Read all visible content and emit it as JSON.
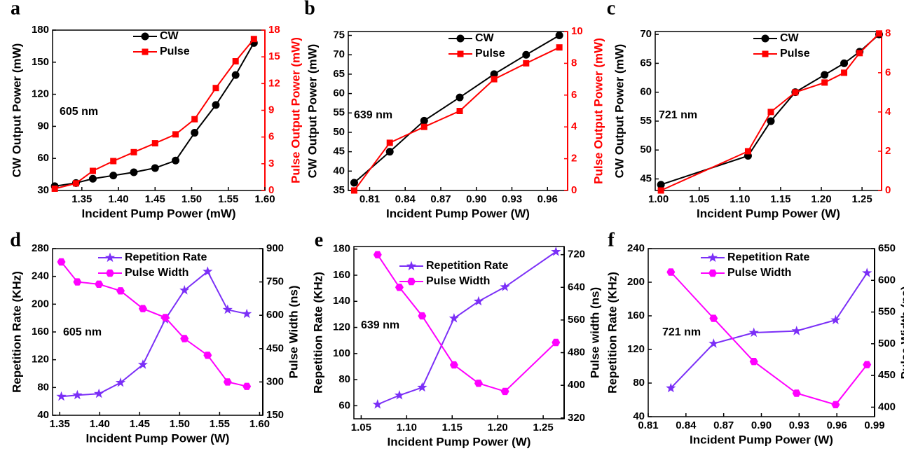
{
  "chart_data": [
    {
      "type": "line",
      "panel_label": "a",
      "annotation": "605 nm",
      "xlabel": "Incident Pump Power (mW)",
      "ylabel": "CW Output Power (mW)",
      "y2label": "Pulse Output Power (mW)",
      "y2color": "#ff0000",
      "x": [
        1.313,
        1.342,
        1.365,
        1.393,
        1.421,
        1.45,
        1.478,
        1.504,
        1.533,
        1.56,
        1.585
      ],
      "xlim": [
        1.31,
        1.6
      ],
      "xticks": [
        1.35,
        {
          "value": 1.4,
          "label": "1.40"
        },
        1.45,
        {
          "value": 1.5,
          "label": "1.50"
        },
        1.55,
        {
          "value": 1.6,
          "label": "1.60"
        }
      ],
      "ylim": [
        30,
        180
      ],
      "yticks": [
        30,
        60,
        90,
        120,
        150,
        180
      ],
      "y2lim": [
        0,
        18
      ],
      "y2ticks": [
        0,
        3,
        6,
        9,
        12,
        15,
        18
      ],
      "series": [
        {
          "name": "CW",
          "color": "#000000",
          "marker": "circle",
          "values": [
            34,
            37,
            41,
            44,
            47,
            51,
            58,
            84,
            110,
            138,
            168
          ]
        },
        {
          "name": "Pulse",
          "color": "#ff0000",
          "marker": "square",
          "axis": "y2",
          "values": [
            0.2,
            0.8,
            2.2,
            3.3,
            4.3,
            5.3,
            6.3,
            8,
            11.5,
            14.5,
            17
          ]
        }
      ]
    },
    {
      "type": "line",
      "panel_label": "b",
      "annotation": "639 nm",
      "xlabel": "Incident Pump Power (W)",
      "ylabel": "CW Output Power (mW)",
      "y2label": "Pulse Output Power (mW)",
      "y2color": "#ff0000",
      "x": [
        0.797,
        0.827,
        0.856,
        0.886,
        0.915,
        0.942,
        0.97
      ],
      "xlim": [
        0.792,
        0.977
      ],
      "xticks": [
        0.81,
        0.84,
        0.87,
        {
          "value": 0.9,
          "label": "0.90"
        },
        0.93,
        0.96
      ],
      "ylim": [
        35,
        76
      ],
      "yticks": [
        35,
        40,
        45,
        50,
        55,
        60,
        65,
        70,
        75
      ],
      "y2lim": [
        0,
        10
      ],
      "y2ticks": [
        0,
        2,
        4,
        6,
        8,
        10
      ],
      "series": [
        {
          "name": "CW",
          "color": "#000000",
          "marker": "circle",
          "values": [
            37,
            45,
            53,
            59,
            65,
            70,
            75
          ]
        },
        {
          "name": "Pulse",
          "color": "#ff0000",
          "marker": "square",
          "axis": "y2",
          "values": [
            0,
            3,
            4,
            5,
            7,
            8,
            9
          ]
        }
      ]
    },
    {
      "type": "line",
      "panel_label": "c",
      "annotation": "721 nm",
      "xlabel": "Incident Pump Power (W)",
      "ylabel": "CW Output Power (mW)",
      "y2label": "Pulse Output Power (mW)",
      "y2color": "#ff0000",
      "x": [
        1.003,
        1.11,
        1.138,
        1.168,
        1.204,
        1.228,
        1.247,
        1.271
      ],
      "xlim": [
        0.996,
        1.274
      ],
      "xticks": [
        {
          "value": 1.0,
          "label": "1.00"
        },
        1.05,
        {
          "value": 1.1,
          "label": "1.10"
        },
        1.15,
        {
          "value": 1.2,
          "label": "1.20"
        },
        1.25
      ],
      "ylim": [
        43,
        70.5
      ],
      "yticks": [
        45,
        50,
        55,
        60,
        65,
        70
      ],
      "y2lim": [
        0,
        8.1
      ],
      "y2ticks": [
        0,
        2,
        4,
        6,
        8
      ],
      "series": [
        {
          "name": "CW",
          "color": "#000000",
          "marker": "circle",
          "values": [
            44,
            49,
            55,
            60,
            63,
            65,
            67,
            70
          ]
        },
        {
          "name": "Pulse",
          "color": "#ff0000",
          "marker": "square",
          "axis": "y2",
          "values": [
            0,
            2,
            4,
            5,
            5.5,
            6,
            7,
            8
          ]
        }
      ]
    },
    {
      "type": "line",
      "panel_label": "d",
      "annotation": "605 nm",
      "xlabel": "Incident Pump Power (W)",
      "ylabel": "Repetition Rate (KHz)",
      "y2label": "Pulse Width (ns)",
      "y2color": "#000000",
      "x": [
        1.352,
        1.372,
        1.399,
        1.426,
        1.454,
        1.482,
        1.506,
        1.535,
        1.56,
        1.584
      ],
      "xlim": [
        1.341,
        1.604
      ],
      "xticks": [
        1.35,
        {
          "value": 1.4,
          "label": "1.40"
        },
        1.45,
        {
          "value": 1.5,
          "label": "1.50"
        },
        1.55,
        {
          "value": 1.6,
          "label": "1.60"
        }
      ],
      "ylim": [
        40,
        280
      ],
      "yticks": [
        40,
        80,
        120,
        160,
        200,
        240,
        280
      ],
      "y2lim": [
        150,
        900
      ],
      "y2ticks": [
        150,
        300,
        450,
        600,
        750,
        900
      ],
      "series": [
        {
          "name": "Repetition Rate",
          "color": "#7b2ff7",
          "marker": "star",
          "values": [
            67,
            69,
            71,
            87,
            113,
            178,
            220,
            247,
            192,
            186
          ]
        },
        {
          "name": "Pulse Width",
          "color": "#ff00ff",
          "marker": "hexagon",
          "axis": "y2",
          "values": [
            840,
            750,
            740,
            710,
            630,
            590,
            495,
            420,
            300,
            280
          ]
        }
      ]
    },
    {
      "type": "line",
      "panel_label": "e",
      "annotation": "639 nm",
      "xlabel": "Incident Pump Power (W)",
      "ylabel": "Repetition Rate (KHz)",
      "y2label": "Pulse width (ns)",
      "y2color": "#000000",
      "x": [
        1.068,
        1.092,
        1.117,
        1.152,
        1.179,
        1.208,
        1.264
      ],
      "xlim": [
        1.042,
        1.273
      ],
      "xticks": [
        1.05,
        {
          "value": 1.1,
          "label": "1.10"
        },
        1.15,
        {
          "value": 1.2,
          "label": "1.20"
        },
        1.25
      ],
      "ylim": [
        50,
        182
      ],
      "yticks": [
        60,
        80,
        100,
        120,
        140,
        160,
        180
      ],
      "y2lim": [
        318,
        740
      ],
      "y2ticks": [
        320,
        400,
        480,
        560,
        640,
        720
      ],
      "series": [
        {
          "name": "Repetition Rate",
          "color": "#7b2ff7",
          "marker": "star",
          "values": [
            61,
            68,
            74,
            127,
            140,
            151,
            178
          ]
        },
        {
          "name": "Pulse Width",
          "color": "#ff00ff",
          "marker": "hexagon",
          "axis": "y2",
          "values": [
            720,
            640,
            570,
            450,
            405,
            385,
            505
          ]
        }
      ]
    },
    {
      "type": "line",
      "panel_label": "f",
      "annotation": "721 nm",
      "xlabel": "Incident Pump Power (W)",
      "ylabel": "Repetition Rate (KHz)",
      "y2label": "Pulse Width (ns)",
      "y2color": "#000000",
      "x": [
        0.828,
        0.862,
        0.894,
        0.928,
        0.959,
        0.984
      ],
      "xlim": [
        0.81,
        0.99
      ],
      "xticks": [
        0.81,
        0.84,
        0.87,
        {
          "value": 0.9,
          "label": "0.90"
        },
        0.93,
        0.96,
        0.99
      ],
      "ylim": [
        40,
        240
      ],
      "yticks": [
        40,
        80,
        120,
        160,
        200,
        240
      ],
      "y2lim": [
        385,
        650
      ],
      "y2ticks": [
        400,
        450,
        500,
        550,
        600,
        650
      ],
      "series": [
        {
          "name": "Repetition Rate",
          "color": "#7b2ff7",
          "marker": "star",
          "values": [
            74,
            127,
            140,
            142,
            155,
            211
          ]
        },
        {
          "name": "Pulse Width",
          "color": "#ff00ff",
          "marker": "hexagon",
          "axis": "y2",
          "values": [
            613,
            540,
            472,
            422,
            404,
            467
          ]
        }
      ]
    }
  ]
}
